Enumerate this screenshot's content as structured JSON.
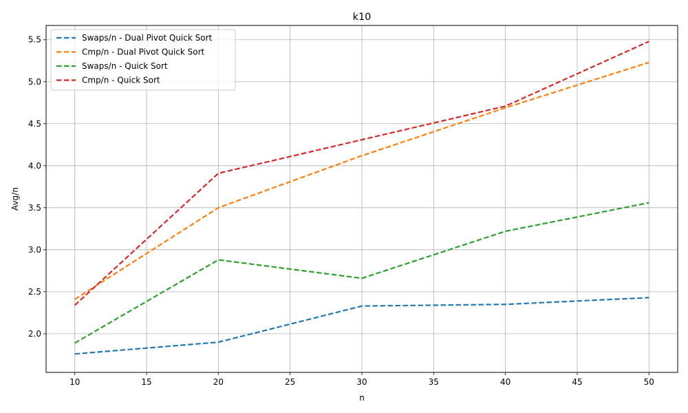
{
  "chart_data": {
    "type": "line",
    "title": "k10",
    "xlabel": "n",
    "ylabel": "Avg/n",
    "x": [
      10,
      20,
      30,
      40,
      50
    ],
    "xlim": [
      8,
      52
    ],
    "ylim": [
      1.54,
      5.67
    ],
    "xticks": [
      10,
      15,
      20,
      25,
      30,
      35,
      40,
      45,
      50
    ],
    "yticks": [
      2.0,
      2.5,
      3.0,
      3.5,
      4.0,
      4.5,
      5.0,
      5.5
    ],
    "grid": true,
    "legend_position": "top-left",
    "line_style": "dashed",
    "series": [
      {
        "name": "Swaps/n - Dual Pivot Quick Sort",
        "color": "#1f77b4",
        "values": [
          1.76,
          1.9,
          2.33,
          2.35,
          2.43
        ]
      },
      {
        "name": "Cmp/n - Dual Pivot Quick Sort",
        "color": "#ff7f0e",
        "values": [
          2.41,
          3.5,
          4.12,
          4.69,
          5.23
        ]
      },
      {
        "name": "Swaps/n - Quick Sort",
        "color": "#2ca02c",
        "values": [
          1.89,
          2.88,
          2.66,
          3.22,
          3.56
        ]
      },
      {
        "name": "Cmp/n - Quick Sort",
        "color": "#d62728",
        "values": [
          2.34,
          3.91,
          4.31,
          4.71,
          5.48
        ]
      }
    ]
  }
}
